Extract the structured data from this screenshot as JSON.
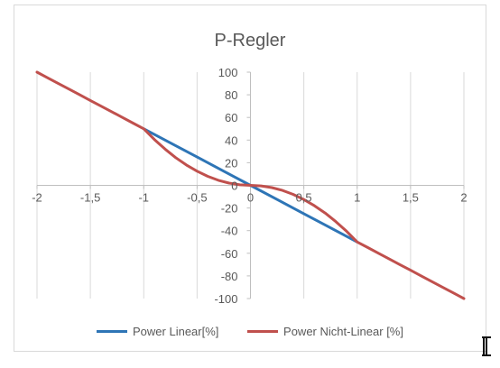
{
  "chart_data": {
    "type": "line",
    "title": "P-Regler",
    "xlabel": "",
    "ylabel": "",
    "xlim": [
      -2,
      2
    ],
    "ylim": [
      -100,
      100
    ],
    "x_ticks": [
      -2,
      -1.5,
      -1,
      -0.5,
      0,
      0.5,
      1,
      1.5,
      2
    ],
    "x_tick_labels": [
      "-2",
      "-1,5",
      "-1",
      "-0,5",
      "0",
      "0,5",
      "1",
      "1,5",
      "2"
    ],
    "y_ticks": [
      -100,
      -80,
      -60,
      -40,
      -20,
      0,
      20,
      40,
      60,
      80,
      100
    ],
    "y_tick_labels": [
      "-100",
      "-80",
      "-60",
      "-40",
      "-20",
      "0",
      "20",
      "40",
      "60",
      "80",
      "100"
    ],
    "grid": "vertical",
    "legend_position": "bottom",
    "series": [
      {
        "name": "Power Linear[%]",
        "color": "#2e75b6",
        "x": [
          -1,
          -0.75,
          -0.5,
          -0.25,
          0,
          0.25,
          0.5,
          0.75,
          1
        ],
        "y": [
          50,
          37.5,
          25,
          12.5,
          0,
          -12.5,
          -25,
          -37.5,
          -50
        ]
      },
      {
        "name": "Power Nicht-Linear [%]",
        "color": "#c0504d",
        "x": [
          -2,
          -1.9,
          -1.8,
          -1.7,
          -1.6,
          -1.5,
          -1.4,
          -1.3,
          -1.2,
          -1.1,
          -1,
          -0.9,
          -0.8,
          -0.7,
          -0.6,
          -0.5,
          -0.4,
          -0.3,
          -0.2,
          -0.1,
          0,
          0.1,
          0.2,
          0.3,
          0.4,
          0.5,
          0.6,
          0.7,
          0.8,
          0.9,
          1,
          1.1,
          1.2,
          1.3,
          1.4,
          1.5,
          1.6,
          1.7,
          1.8,
          1.9,
          2
        ],
        "y": [
          100,
          95,
          90,
          85,
          80,
          75,
          70,
          65,
          60,
          55,
          50,
          40.5,
          32,
          24.5,
          18,
          12.5,
          8,
          4.5,
          2,
          0.5,
          0,
          -0.5,
          -2,
          -4.5,
          -8,
          -12.5,
          -18,
          -24.5,
          -32,
          -40.5,
          -50,
          -55,
          -60,
          -65,
          -70,
          -75,
          -80,
          -85,
          -90,
          -95,
          -100
        ]
      }
    ]
  }
}
